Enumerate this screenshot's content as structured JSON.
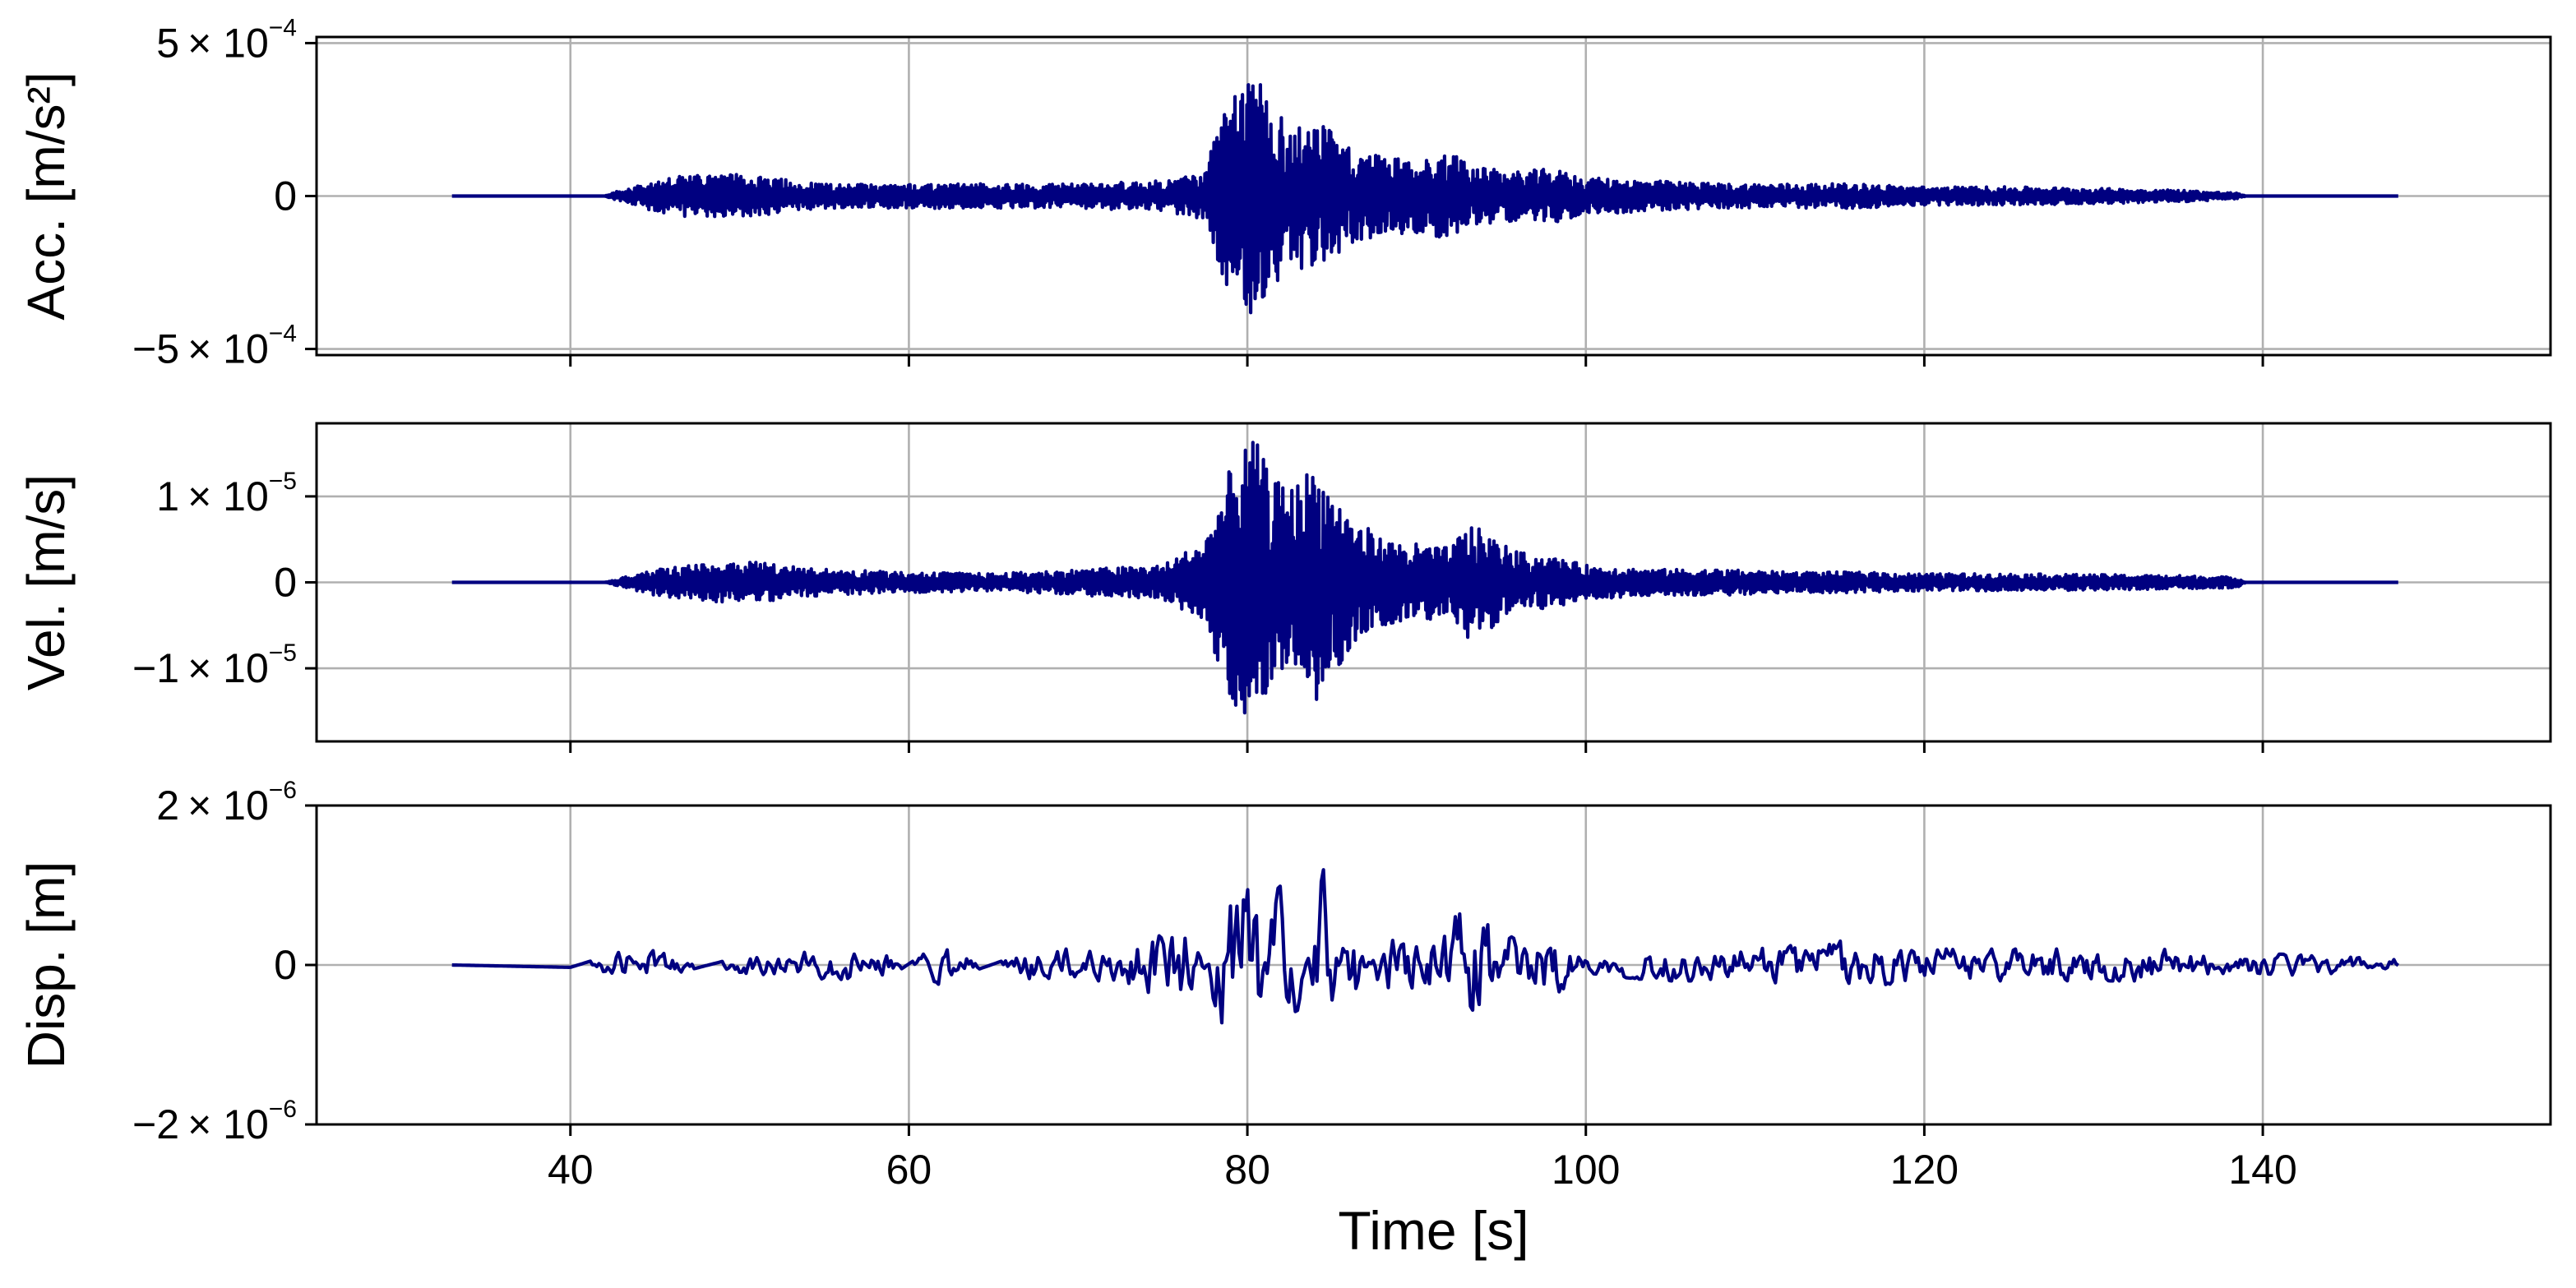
{
  "colors": {
    "trace": "#000080",
    "grid": "#b0b0b0"
  },
  "chart_data": [
    {
      "type": "line",
      "ylabel": "Acc. [m/s²]",
      "xlabel": "",
      "xlim": [
        25,
        157
      ],
      "ylim": [
        -0.00052,
        0.00052
      ],
      "grid": true,
      "x_ticks": [
        40,
        60,
        80,
        100,
        120,
        140
      ],
      "x_tick_labels_shown": false,
      "y_ticks": [
        {
          "value": 0.0005,
          "mantissa": "5",
          "base": "× 10",
          "exp": "−4"
        },
        {
          "value": 0,
          "mantissa": "0",
          "base": "",
          "exp": ""
        },
        {
          "value": -0.0005,
          "mantissa": "−5",
          "base": "× 10",
          "exp": "−4"
        }
      ],
      "series": [
        {
          "color": "#000080",
          "x": [
            33,
            42,
            43,
            45,
            47,
            50,
            55,
            60,
            65,
            70,
            75,
            77.5,
            78.5,
            79.5,
            80.5,
            81.5,
            82.5,
            84,
            86,
            88,
            90,
            92,
            94,
            96,
            98,
            100,
            104,
            108,
            112,
            116,
            120,
            125,
            130,
            135,
            138.5,
            139,
            148
          ],
          "y": [
            0,
            0,
            2e-05,
            5e-05,
            7e-05,
            7e-05,
            4e-05,
            4e-05,
            4e-05,
            4e-05,
            5e-05,
            8e-05,
            0.00028,
            0.00034,
            0.00044,
            0.00032,
            0.00022,
            0.00026,
            0.00016,
            0.00013,
            0.00012,
            0.00014,
            9e-05,
            8e-05,
            9e-05,
            6e-05,
            5e-05,
            4e-05,
            4e-05,
            4e-05,
            3e-05,
            3e-05,
            2.5e-05,
            2e-05,
            1e-05,
            0,
            0
          ],
          "envelope": "y is the envelope amplitude; the trace oscillates between +y and -y"
        }
      ]
    },
    {
      "type": "line",
      "ylabel": "Vel. [m/s]",
      "xlabel": "",
      "xlim": [
        25,
        157
      ],
      "ylim": [
        -1.85e-05,
        1.85e-05
      ],
      "grid": true,
      "x_ticks": [
        40,
        60,
        80,
        100,
        120,
        140
      ],
      "x_tick_labels_shown": false,
      "y_ticks": [
        {
          "value": 1e-05,
          "mantissa": "1",
          "base": "× 10",
          "exp": "−5"
        },
        {
          "value": 0,
          "mantissa": "0",
          "base": "",
          "exp": ""
        },
        {
          "value": -1e-05,
          "mantissa": "−1",
          "base": "× 10",
          "exp": "−5"
        }
      ],
      "series": [
        {
          "color": "#000080",
          "x": [
            33,
            42,
            43,
            45,
            47,
            50,
            55,
            60,
            65,
            70,
            75,
            77.5,
            78.5,
            79.5,
            80.5,
            81.5,
            82.5,
            84,
            86,
            88,
            90,
            92,
            93,
            96,
            98,
            100,
            104,
            108,
            112,
            116,
            120,
            125,
            130,
            135,
            138.5,
            139,
            148
          ],
          "y": [
            0,
            0,
            5e-07,
            1.5e-06,
            2e-06,
            2.5e-06,
            1.5e-06,
            1.2e-06,
            1e-06,
            1.5e-06,
            2e-06,
            5e-06,
            1.1e-05,
            1.55e-05,
            1.65e-05,
            1.2e-05,
            1.1e-05,
            1.4e-05,
            8e-06,
            5e-06,
            4.5e-06,
            4e-06,
            7e-06,
            3.5e-06,
            3e-06,
            2e-06,
            1.5e-06,
            1.5e-06,
            1.2e-06,
            1.2e-06,
            1e-06,
            1e-06,
            9e-07,
            8e-07,
            6e-07,
            0,
            0
          ],
          "envelope": "y is the envelope amplitude; the trace oscillates between +y and -y"
        }
      ]
    },
    {
      "type": "line",
      "ylabel": "Disp. [m]",
      "xlabel": "Time [s]",
      "xlim": [
        25,
        157
      ],
      "ylim": [
        -2e-06,
        2e-06
      ],
      "grid": true,
      "x_ticks": [
        40,
        60,
        80,
        100,
        120,
        140
      ],
      "x_tick_labels": [
        "40",
        "60",
        "80",
        "100",
        "120",
        "140"
      ],
      "y_ticks": [
        {
          "value": 2e-06,
          "mantissa": "2",
          "base": "× 10",
          "exp": "−6"
        },
        {
          "value": 0,
          "mantissa": "0",
          "base": "",
          "exp": ""
        },
        {
          "value": -2e-06,
          "mantissa": "−2",
          "base": "× 10",
          "exp": "−6"
        }
      ],
      "series": [
        {
          "color": "#000080",
          "x": [
            33,
            40,
            43.5,
            44.5,
            50,
            56.5,
            58.5,
            62,
            63.5,
            67.5,
            72,
            76.5,
            77,
            78.5,
            79,
            80.5,
            81.5,
            82.5,
            84.5,
            86,
            88,
            90,
            93,
            96,
            98,
            100,
            104,
            110,
            115,
            120,
            124,
            130,
            134,
            138.5,
            139.5,
            148
          ],
          "y": [
            0,
            -3e-08,
            2e-07,
            -2e-07,
            1e-07,
            2e-07,
            -2e-07,
            3e-07,
            -1e-07,
            2e-07,
            2e-07,
            5e-07,
            3e-07,
            -8e-07,
            1e-06,
            1.3e-06,
            -9e-07,
            -1.1e-06,
            1.2e-06,
            -7e-07,
            4e-07,
            3e-07,
            7e-07,
            3e-07,
            4e-07,
            1e-07,
            2e-07,
            2e-07,
            3e-07,
            2e-07,
            2e-07,
            2e-07,
            2e-07,
            1e-07,
            1.5e-07,
            7e-08
          ],
          "envelope": "y is the envelope amplitude; the trace oscillates around zero with this amplitude"
        }
      ]
    }
  ]
}
